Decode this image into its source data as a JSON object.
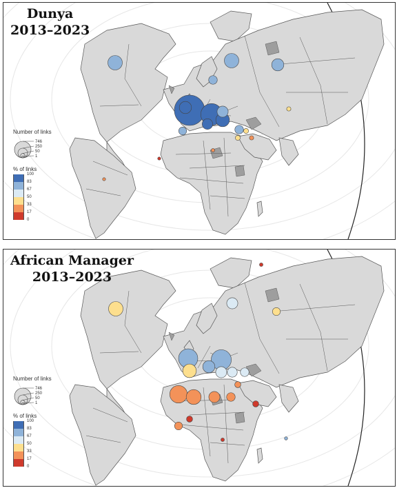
{
  "panels": [
    {
      "id": "panel1",
      "title": "Dunya",
      "subtitle": "2013–2023",
      "bubbles": [
        {
          "region": "North America",
          "size": 170,
          "pct": 88
        },
        {
          "region": "Russia (west)",
          "size": 170,
          "pct": 88
        },
        {
          "region": "Russia (east)",
          "size": 120,
          "pct": 90
        },
        {
          "region": "Western Europe",
          "size": 746,
          "pct": 100
        },
        {
          "region": "Central Europe",
          "size": 380,
          "pct": 96
        },
        {
          "region": "Balkans",
          "size": 150,
          "pct": 95
        },
        {
          "region": "Eastern Europe",
          "size": 100,
          "pct": 90
        },
        {
          "region": "Scandinavia",
          "size": 60,
          "pct": 85
        },
        {
          "region": "UK",
          "size": 120,
          "pct": 97
        },
        {
          "region": "Iberia",
          "size": 50,
          "pct": 85
        },
        {
          "region": "Italy",
          "size": 90,
          "pct": 98
        },
        {
          "region": "Turkey",
          "size": 60,
          "pct": 88
        },
        {
          "region": "Caucasus",
          "size": 20,
          "pct": 55
        },
        {
          "region": "Middle East",
          "size": 15,
          "pct": 40
        },
        {
          "region": "Arabia",
          "size": 20,
          "pct": 50
        },
        {
          "region": "Kazakhstan",
          "size": 15,
          "pct": 50
        },
        {
          "region": "North Africa",
          "size": 10,
          "pct": 33
        },
        {
          "region": "West Africa",
          "size": 3,
          "pct": 17
        },
        {
          "region": "South America",
          "size": 3,
          "pct": 33
        }
      ]
    },
    {
      "id": "panel2",
      "title": "African Manager",
      "subtitle": "2013–2023",
      "bubbles": [
        {
          "region": "North America",
          "size": 170,
          "pct": 50
        },
        {
          "region": "Russia (west)",
          "size": 100,
          "pct": 67
        },
        {
          "region": "Russia (east)",
          "size": 50,
          "pct": 50
        },
        {
          "region": "Western Europe",
          "size": 300,
          "pct": 85
        },
        {
          "region": "Central Europe",
          "size": 330,
          "pct": 88
        },
        {
          "region": "France",
          "size": 150,
          "pct": 55
        },
        {
          "region": "Italy",
          "size": 120,
          "pct": 75
        },
        {
          "region": "Balkans",
          "size": 100,
          "pct": 70
        },
        {
          "region": "Eastern Mediterranean",
          "size": 80,
          "pct": 65
        },
        {
          "region": "Turkey",
          "size": 60,
          "pct": 70
        },
        {
          "region": "Northwest Africa",
          "size": 250,
          "pct": 30
        },
        {
          "region": "North Africa",
          "size": 180,
          "pct": 30
        },
        {
          "region": "Libya",
          "size": 100,
          "pct": 30
        },
        {
          "region": "Egypt",
          "size": 60,
          "pct": 25
        },
        {
          "region": "West Africa",
          "size": 50,
          "pct": 30
        },
        {
          "region": "Sahel",
          "size": 30,
          "pct": 20
        },
        {
          "region": "Horn of Africa",
          "size": 30,
          "pct": 20
        },
        {
          "region": "Central Africa",
          "size": 10,
          "pct": 17
        },
        {
          "region": "Middle East",
          "size": 30,
          "pct": 30
        },
        {
          "region": "Indian Ocean",
          "size": 8,
          "pct": 85
        },
        {
          "region": "Russia (far east)",
          "size": 10,
          "pct": 17
        }
      ]
    }
  ],
  "legend": {
    "size_title": "Number of links",
    "size_values": [
      "746",
      "250",
      "50",
      "1"
    ],
    "pct_title": "% of links",
    "pct_bins": [
      {
        "label": "100",
        "color": "#3f6eb5"
      },
      {
        "label": "83",
        "color": "#8fb3d9"
      },
      {
        "label": "67",
        "color": "#dbeaf4"
      },
      {
        "label": "50",
        "color": "#fddf8e"
      },
      {
        "label": "33",
        "color": "#f39259"
      },
      {
        "label": "17",
        "color": "#cf3a2c"
      },
      {
        "label": "0",
        "color": ""
      }
    ]
  },
  "colors": {
    "land": "#d9d9d9",
    "land_dark": "#9e9e9e",
    "border": "#555555",
    "ocean": "#ffffff",
    "grid": "#e6e6e6"
  }
}
